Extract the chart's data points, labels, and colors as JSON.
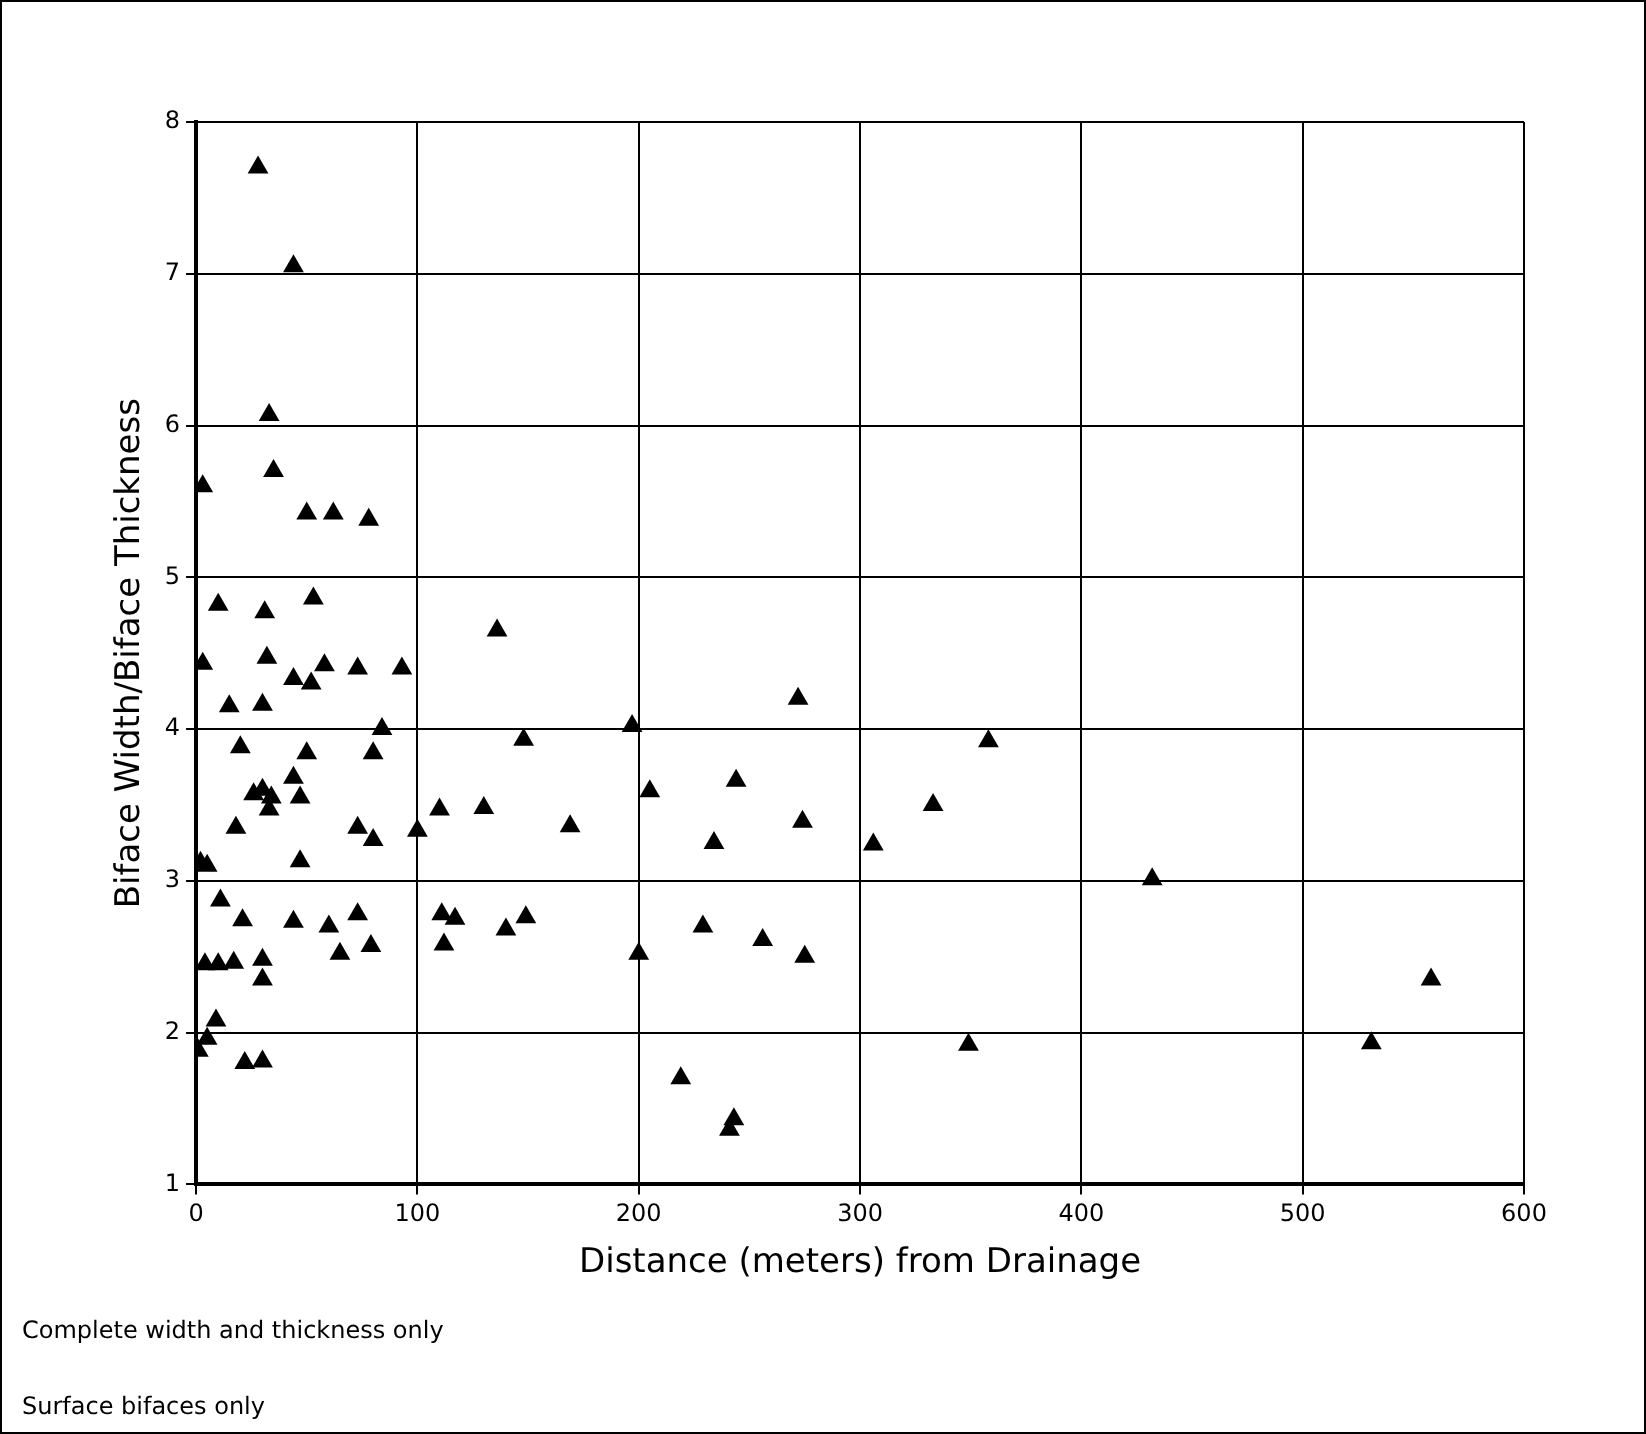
{
  "chart_data": {
    "type": "scatter",
    "xlabel": "Distance (meters) from Drainage",
    "ylabel": "Biface Width/Biface Thickness",
    "marker": "triangle",
    "grid": true,
    "legend": false,
    "xlim": [
      0,
      600
    ],
    "xticks": [
      0,
      100,
      200,
      300,
      400,
      500,
      600
    ],
    "ylim": [
      1,
      8
    ],
    "yticks": [
      1,
      2,
      3,
      4,
      5,
      6,
      7,
      8
    ],
    "annotations": [
      "Complete width and thickness only",
      "Surface bifaces only"
    ],
    "series": [
      {
        "color": "#000000",
        "x": [
          28,
          44,
          33,
          35,
          3,
          50,
          62,
          78,
          53,
          10,
          31,
          136,
          3,
          32,
          58,
          73,
          93,
          15,
          30,
          44,
          52,
          272,
          84,
          197,
          148,
          358,
          20,
          50,
          80,
          44,
          244,
          30,
          26,
          34,
          47,
          205,
          333,
          33,
          110,
          130,
          18,
          73,
          100,
          80,
          169,
          274,
          234,
          306,
          2,
          5,
          47,
          432,
          11,
          73,
          60,
          111,
          117,
          149,
          140,
          44,
          21,
          229,
          256,
          112,
          79,
          65,
          4,
          10,
          17,
          30,
          30,
          200,
          275,
          558,
          9,
          5,
          1,
          22,
          30,
          219,
          349,
          531,
          243,
          241
        ],
        "values": [
          7.7,
          7.05,
          6.07,
          5.7,
          5.6,
          5.42,
          5.42,
          5.38,
          4.86,
          4.82,
          4.77,
          4.65,
          4.43,
          4.47,
          4.42,
          4.4,
          4.4,
          4.15,
          4.16,
          4.33,
          4.3,
          4.2,
          4.0,
          4.02,
          3.93,
          3.92,
          3.88,
          3.84,
          3.84,
          3.68,
          3.66,
          3.6,
          3.57,
          3.55,
          3.55,
          3.59,
          3.5,
          3.47,
          3.47,
          3.48,
          3.35,
          3.35,
          3.33,
          3.27,
          3.36,
          3.39,
          3.25,
          3.24,
          3.12,
          3.1,
          3.13,
          3.01,
          2.87,
          2.78,
          2.7,
          2.78,
          2.75,
          2.76,
          2.68,
          2.73,
          2.74,
          2.7,
          2.61,
          2.58,
          2.57,
          2.52,
          2.45,
          2.45,
          2.46,
          2.48,
          2.35,
          2.52,
          2.5,
          2.35,
          2.08,
          1.96,
          1.88,
          1.8,
          1.81,
          1.7,
          1.92,
          1.93,
          1.43,
          1.36
        ]
      }
    ]
  }
}
